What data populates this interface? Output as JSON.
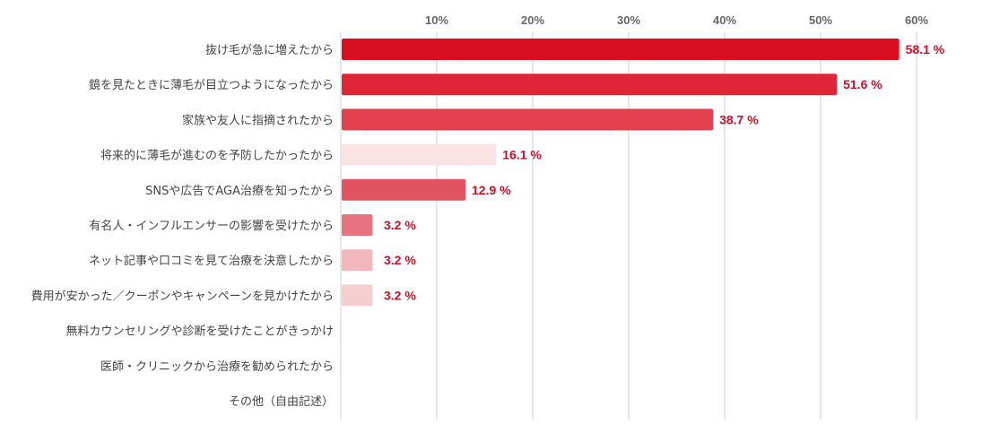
{
  "chart_data": {
    "type": "bar",
    "orientation": "horizontal",
    "categories": [
      "抜け毛が急に増えたから",
      "鏡を見たときに薄毛が目立つようになったから",
      "家族や友人に指摘されたから",
      "将来的に薄毛が進むのを予防したかったから",
      "SNSや広告でAGA治療を知ったから",
      "有名人・インフルエンサーの影響を受けたから",
      "ネット記事や口コミを見て治療を決意したから",
      "費用が安かった／クーポンやキャンペーンを見かけたから",
      "無料カウンセリングや診断を受けたことがきっかけ",
      "医師・クリニックから治療を勧められたから",
      "その他（自由記述）"
    ],
    "values": [
      58.1,
      51.6,
      38.7,
      16.1,
      12.9,
      3.2,
      3.2,
      3.2,
      null,
      null,
      null
    ],
    "value_labels": [
      "58.1 %",
      "51.6 %",
      "38.7 %",
      "16.1 %",
      "12.9 %",
      "3.2 %",
      "3.2 %",
      "3.2 %",
      "",
      "",
      ""
    ],
    "bar_colors": [
      "#d90f21",
      "#de2638",
      "#e2404f",
      "#fbe3e5",
      "#e25361",
      "#e8727d",
      "#f2b6bc",
      "#f5ced2",
      "#ffffff",
      "#ffffff",
      "#ffffff"
    ],
    "value_label_color": "#c8102e",
    "xlim": [
      0,
      60
    ],
    "xticks": [
      10,
      20,
      30,
      40,
      50,
      60
    ],
    "xtick_labels": [
      "10%",
      "20%",
      "30%",
      "40%",
      "50%",
      "60%"
    ],
    "xaxis_position": "top",
    "grid": true,
    "title": "",
    "xlabel": "",
    "ylabel": ""
  }
}
